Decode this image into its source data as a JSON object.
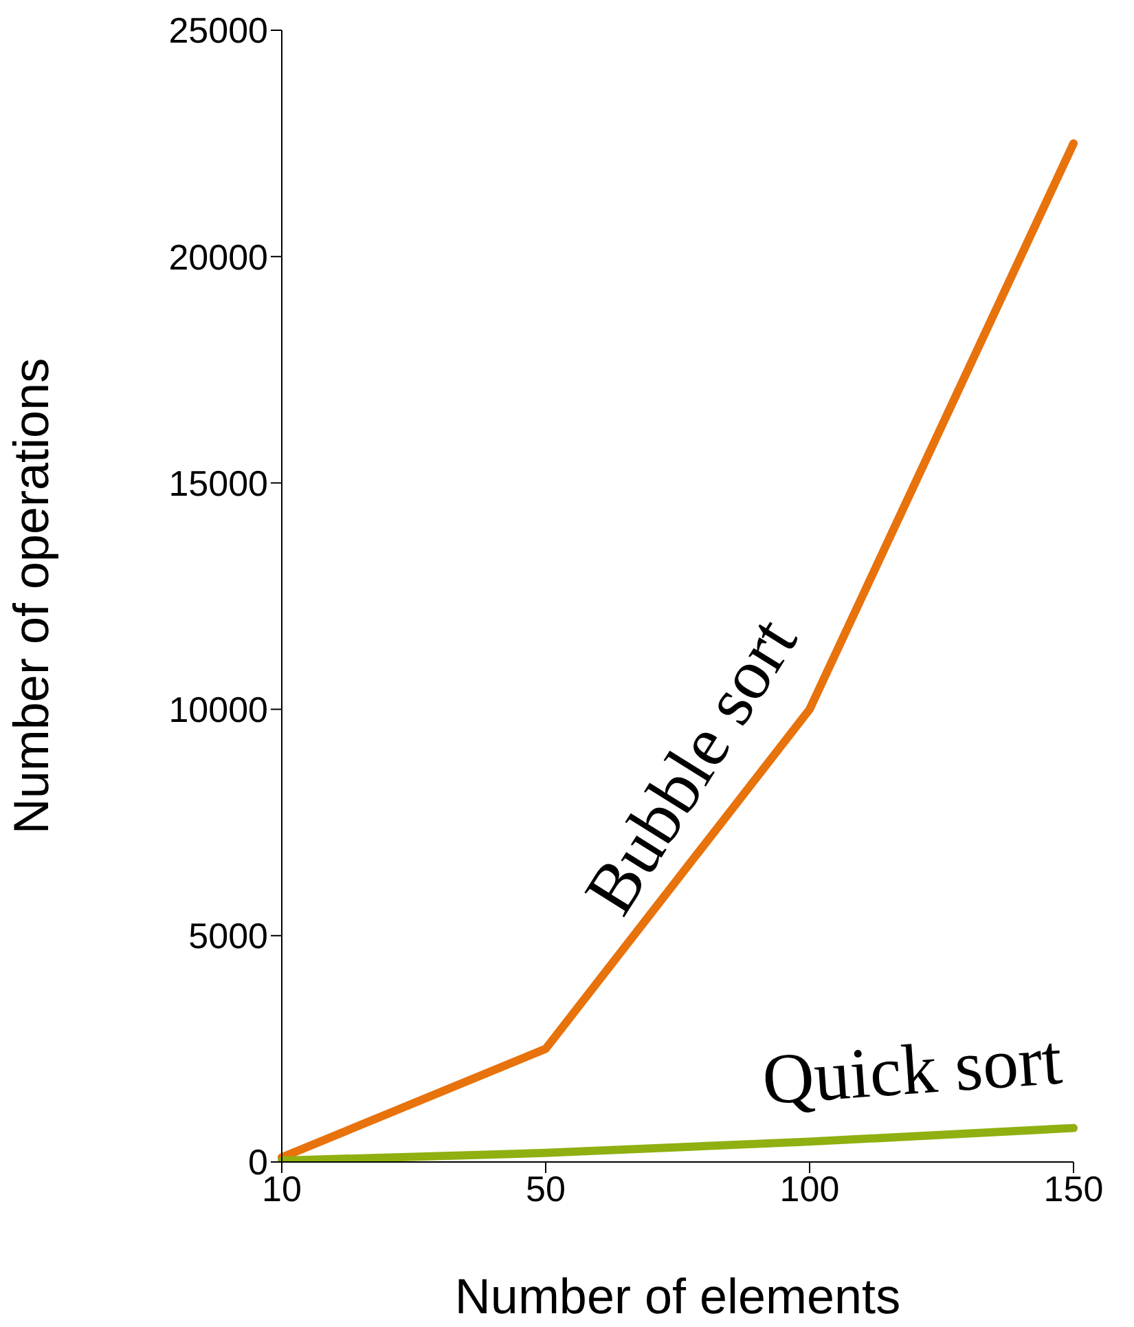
{
  "chart_data": {
    "type": "line",
    "xlabel": "Number of elements",
    "ylabel": "Number of operations",
    "categories": [
      "10",
      "50",
      "100",
      "150"
    ],
    "series": [
      {
        "name": "Bubble sort",
        "color": "#e8720c",
        "values": [
          100,
          2500,
          10000,
          22500
        ]
      },
      {
        "name": "Quick sort",
        "color": "#8fb010",
        "values": [
          30,
          200,
          450,
          750
        ]
      }
    ],
    "ylim": [
      0,
      25000
    ],
    "yticks": [
      0,
      5000,
      10000,
      15000,
      20000,
      25000
    ],
    "grid": false,
    "legend": false,
    "marker": "none",
    "line_style": "solid"
  }
}
